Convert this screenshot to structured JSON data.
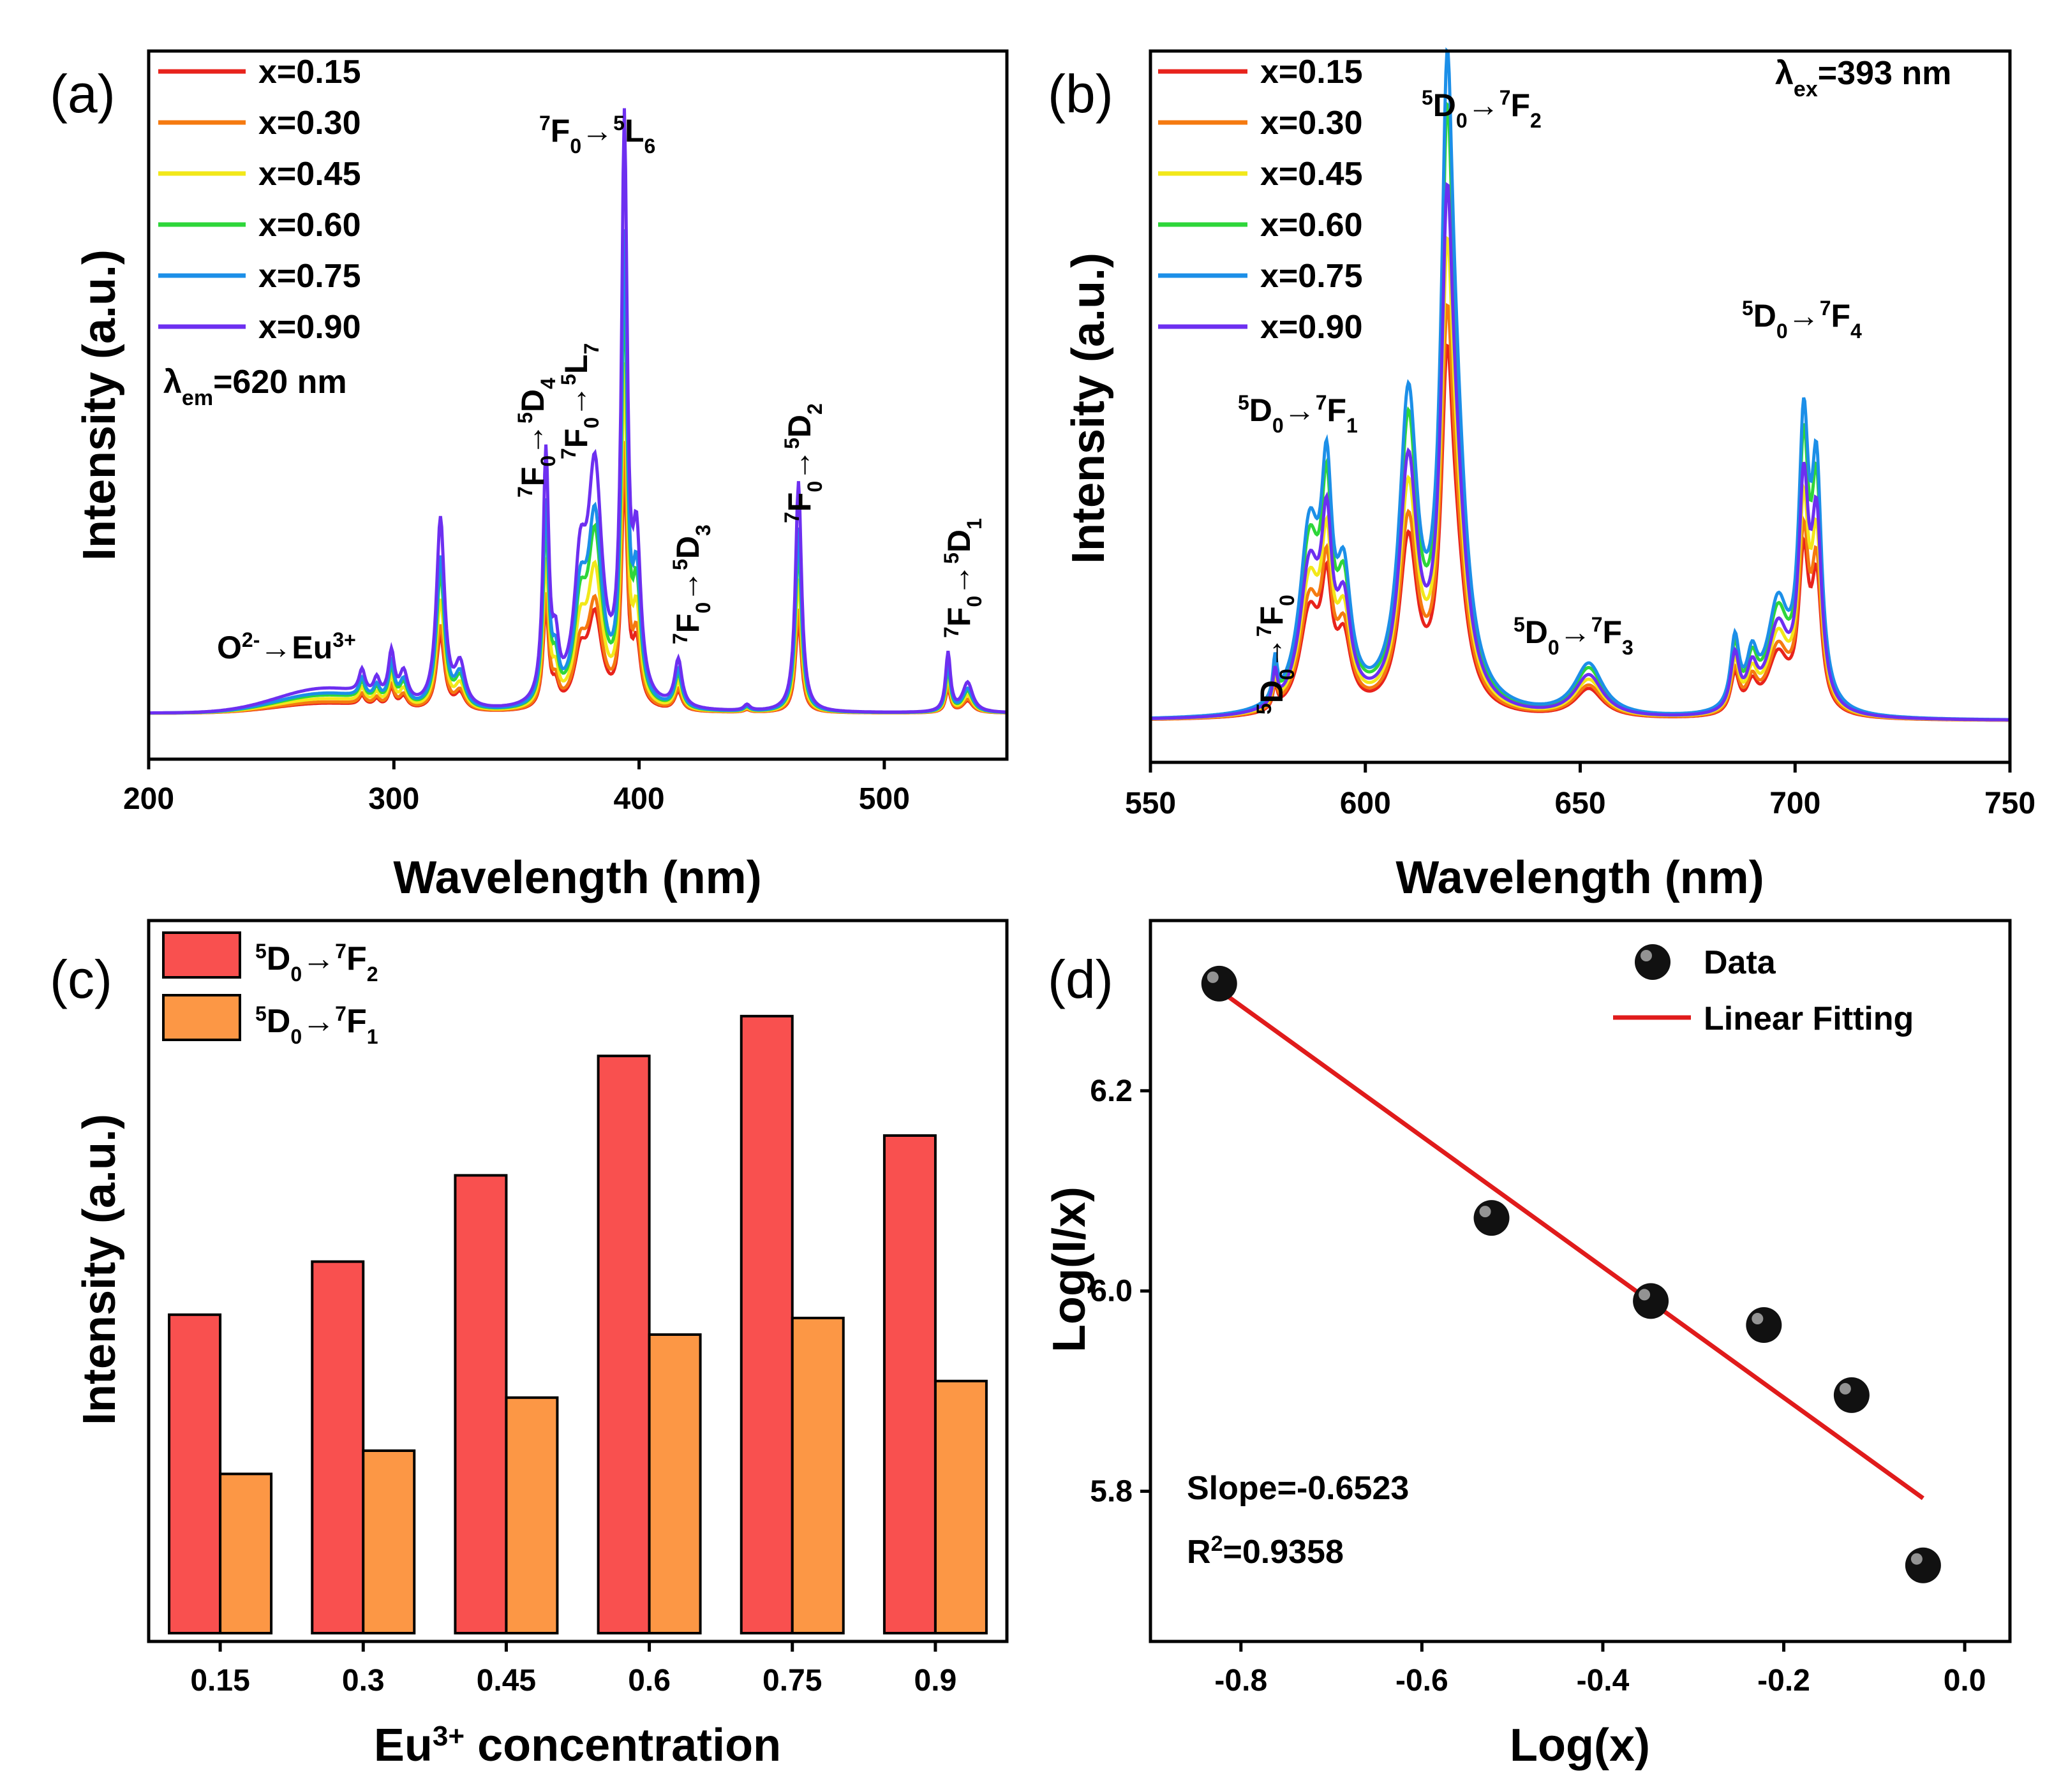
{
  "chart_data": [
    {
      "panel": "(a)",
      "type": "line",
      "title": "",
      "xlabel": "Wavelength (nm)",
      "ylabel": "Intensity (a.u.)",
      "xlim": [
        200,
        550
      ],
      "ylim": [
        0,
        1
      ],
      "xticks": [
        200,
        300,
        400,
        500
      ],
      "condition": "λem=620 nm",
      "condition_main": "λ",
      "condition_sub": "em",
      "condition_rest": "=620 nm",
      "series": [
        {
          "name": "x=0.15",
          "color": "#e8231c",
          "scale": 0.4
        },
        {
          "name": "x=0.30",
          "color": "#f57a10",
          "scale": 0.45
        },
        {
          "name": "x=0.45",
          "color": "#f2e81a",
          "scale": 0.58
        },
        {
          "name": "x=0.60",
          "color": "#2ed63a",
          "scale": 0.72
        },
        {
          "name": "x=0.75",
          "color": "#1c8fe8",
          "scale": 0.8
        },
        {
          "name": "x=0.90",
          "color": "#6d2ff0",
          "scale": 1.0
        }
      ],
      "peaks": [
        {
          "x": 287,
          "h": 0.04,
          "w": 1.5
        },
        {
          "x": 293,
          "h": 0.03,
          "w": 1.5
        },
        {
          "x": 299,
          "h": 0.08,
          "w": 1.5
        },
        {
          "x": 304,
          "h": 0.05,
          "w": 2
        },
        {
          "x": 319,
          "h": 0.32,
          "w": 2
        },
        {
          "x": 327,
          "h": 0.07,
          "w": 2.5
        },
        {
          "x": 362,
          "h": 0.42,
          "w": 1.4
        },
        {
          "x": 366,
          "h": 0.08,
          "w": 1.5
        },
        {
          "x": 376,
          "h": 0.2,
          "w": 3
        },
        {
          "x": 382,
          "h": 0.38,
          "w": 3.5
        },
        {
          "x": 394,
          "h": 0.95,
          "w": 1.4
        },
        {
          "x": 399,
          "h": 0.25,
          "w": 2
        },
        {
          "x": 416,
          "h": 0.08,
          "w": 1.8
        },
        {
          "x": 444,
          "h": 0.01,
          "w": 1.5
        },
        {
          "x": 465,
          "h": 0.39,
          "w": 1.5
        },
        {
          "x": 526,
          "h": 0.1,
          "w": 1.2
        },
        {
          "x": 534,
          "h": 0.05,
          "w": 2.5
        }
      ],
      "base_band": {
        "center": 272,
        "height": 0.04,
        "width": 28
      },
      "annotations": [
        {
          "text": "O2-→Eu3+",
          "main": "O",
          "sup1": "2-",
          "arrow": "→Eu",
          "sup2": "3+"
        },
        {
          "text": "7F0→5D4",
          "lo": "7",
          "lm": "F",
          "lsub": "0",
          "ro": "5",
          "rm": "D",
          "rsub": "4"
        },
        {
          "text": "7F0→5L7",
          "lo": "7",
          "lm": "F",
          "lsub": "0",
          "ro": "5",
          "rm": "L",
          "rsub": "7"
        },
        {
          "text": "7F0→5L6",
          "lo": "7",
          "lm": "F",
          "lsub": "0",
          "ro": "5",
          "rm": "L",
          "rsub": "6"
        },
        {
          "text": "7F0→5D3",
          "lo": "7",
          "lm": "F",
          "lsub": "0",
          "ro": "5",
          "rm": "D",
          "rsub": "3"
        },
        {
          "text": "7F0→5D2",
          "lo": "7",
          "lm": "F",
          "lsub": "0",
          "ro": "5",
          "rm": "D",
          "rsub": "2"
        },
        {
          "text": "7F0→5D1",
          "lo": "7",
          "lm": "F",
          "lsub": "0",
          "ro": "5",
          "rm": "D",
          "rsub": "1"
        }
      ]
    },
    {
      "panel": "(b)",
      "type": "line",
      "title": "",
      "xlabel": "Wavelength (nm)",
      "ylabel": "Intensity (a.u.)",
      "xlim": [
        550,
        750
      ],
      "ylim": [
        0,
        1
      ],
      "xticks": [
        550,
        600,
        650,
        700,
        750
      ],
      "condition": "λex=393 nm",
      "condition_main": "λ",
      "condition_sub": "ex",
      "condition_rest": "=393 nm",
      "series": [
        {
          "name": "x=0.15",
          "color": "#e8231c",
          "scale": 0.56
        },
        {
          "name": "x=0.30",
          "color": "#f57a10",
          "scale": 0.62
        },
        {
          "name": "x=0.45",
          "color": "#f2e81a",
          "scale": 0.72
        },
        {
          "name": "x=0.60",
          "color": "#2ed63a",
          "scale": 0.92
        },
        {
          "name": "x=0.75",
          "color": "#1c8fe8",
          "scale": 1.0
        },
        {
          "name": "x=0.90",
          "color": "#6d2ff0",
          "scale": 0.8
        }
      ],
      "peaks": [
        {
          "x": 579,
          "h": 0.07,
          "w": 0.6
        },
        {
          "x": 587,
          "h": 0.3,
          "w": 2.8
        },
        {
          "x": 591,
          "h": 0.33,
          "w": 1.5
        },
        {
          "x": 595,
          "h": 0.2,
          "w": 2
        },
        {
          "x": 610,
          "h": 0.52,
          "w": 2.5
        },
        {
          "x": 619,
          "h": 0.85,
          "w": 1.6
        },
        {
          "x": 621,
          "h": 0.38,
          "w": 3
        },
        {
          "x": 652,
          "h": 0.09,
          "w": 4
        },
        {
          "x": 686,
          "h": 0.12,
          "w": 1.2
        },
        {
          "x": 690,
          "h": 0.08,
          "w": 1.5
        },
        {
          "x": 696,
          "h": 0.18,
          "w": 3
        },
        {
          "x": 702,
          "h": 0.45,
          "w": 1.4
        },
        {
          "x": 705,
          "h": 0.38,
          "w": 1.4
        }
      ],
      "annotations": [
        {
          "text": "5D0→7F0",
          "lo": "5",
          "lm": "D",
          "lsub": "0",
          "ro": "7",
          "rm": "F",
          "rsub": "0"
        },
        {
          "text": "5D0→7F1",
          "lo": "5",
          "lm": "D",
          "lsub": "0",
          "ro": "7",
          "rm": "F",
          "rsub": "1"
        },
        {
          "text": "5D0→7F2",
          "lo": "5",
          "lm": "D",
          "lsub": "0",
          "ro": "7",
          "rm": "F",
          "rsub": "2"
        },
        {
          "text": "5D0→7F3",
          "lo": "5",
          "lm": "D",
          "lsub": "0",
          "ro": "7",
          "rm": "F",
          "rsub": "3"
        },
        {
          "text": "5D0→7F4",
          "lo": "5",
          "lm": "D",
          "lsub": "0",
          "ro": "7",
          "rm": "F",
          "rsub": "4"
        }
      ]
    },
    {
      "panel": "(c)",
      "type": "bar",
      "title": "",
      "xlabel": "Eu3+ concentration",
      "xlabel_parts": {
        "pre": "Eu",
        "sup": "3+",
        "post": " concentration"
      },
      "ylabel": "Intensity (a.u.)",
      "categories": [
        "0.15",
        "0.3",
        "0.45",
        "0.6",
        "0.75",
        "0.9"
      ],
      "ylim": [
        0,
        1
      ],
      "series": [
        {
          "name": "5D0→7F2",
          "lo": "5",
          "lm": "D",
          "lsub": "0",
          "ro": "7",
          "rm": "F",
          "rsub": "2",
          "color": "#f9504f",
          "values": [
            0.48,
            0.56,
            0.69,
            0.87,
            0.93,
            0.75
          ]
        },
        {
          "name": "5D0→7F1",
          "lo": "5",
          "lm": "D",
          "lsub": "0",
          "ro": "7",
          "rm": "F",
          "rsub": "1",
          "color": "#fc9745",
          "values": [
            0.24,
            0.275,
            0.355,
            0.45,
            0.475,
            0.38
          ]
        }
      ]
    },
    {
      "panel": "(d)",
      "type": "scatter",
      "title": "",
      "xlabel": "Log(x)",
      "ylabel": "Log(I/x)",
      "xlim": [
        -0.9,
        0.05
      ],
      "ylim": [
        5.65,
        6.37
      ],
      "xticks": [
        "-0.8",
        "-0.6",
        "-0.4",
        "-0.2",
        "0.0"
      ],
      "yticks": [
        "5.8",
        "6.0",
        "6.2"
      ],
      "points": [
        [
          -0.824,
          6.307
        ],
        [
          -0.523,
          6.073
        ],
        [
          -0.347,
          5.99
        ],
        [
          -0.222,
          5.966
        ],
        [
          -0.125,
          5.896
        ],
        [
          -0.046,
          5.726
        ]
      ],
      "fit": {
        "slope": -0.6523,
        "intercept": 5.763,
        "x_range": [
          -0.824,
          -0.046
        ]
      },
      "legend": [
        "Data",
        "Linear Fitting"
      ],
      "slope_label": "Slope=-0.6523",
      "r2": {
        "pre": "R",
        "sup": "2",
        "post": "=0.9358",
        "text": "R2=0.9358"
      }
    }
  ]
}
